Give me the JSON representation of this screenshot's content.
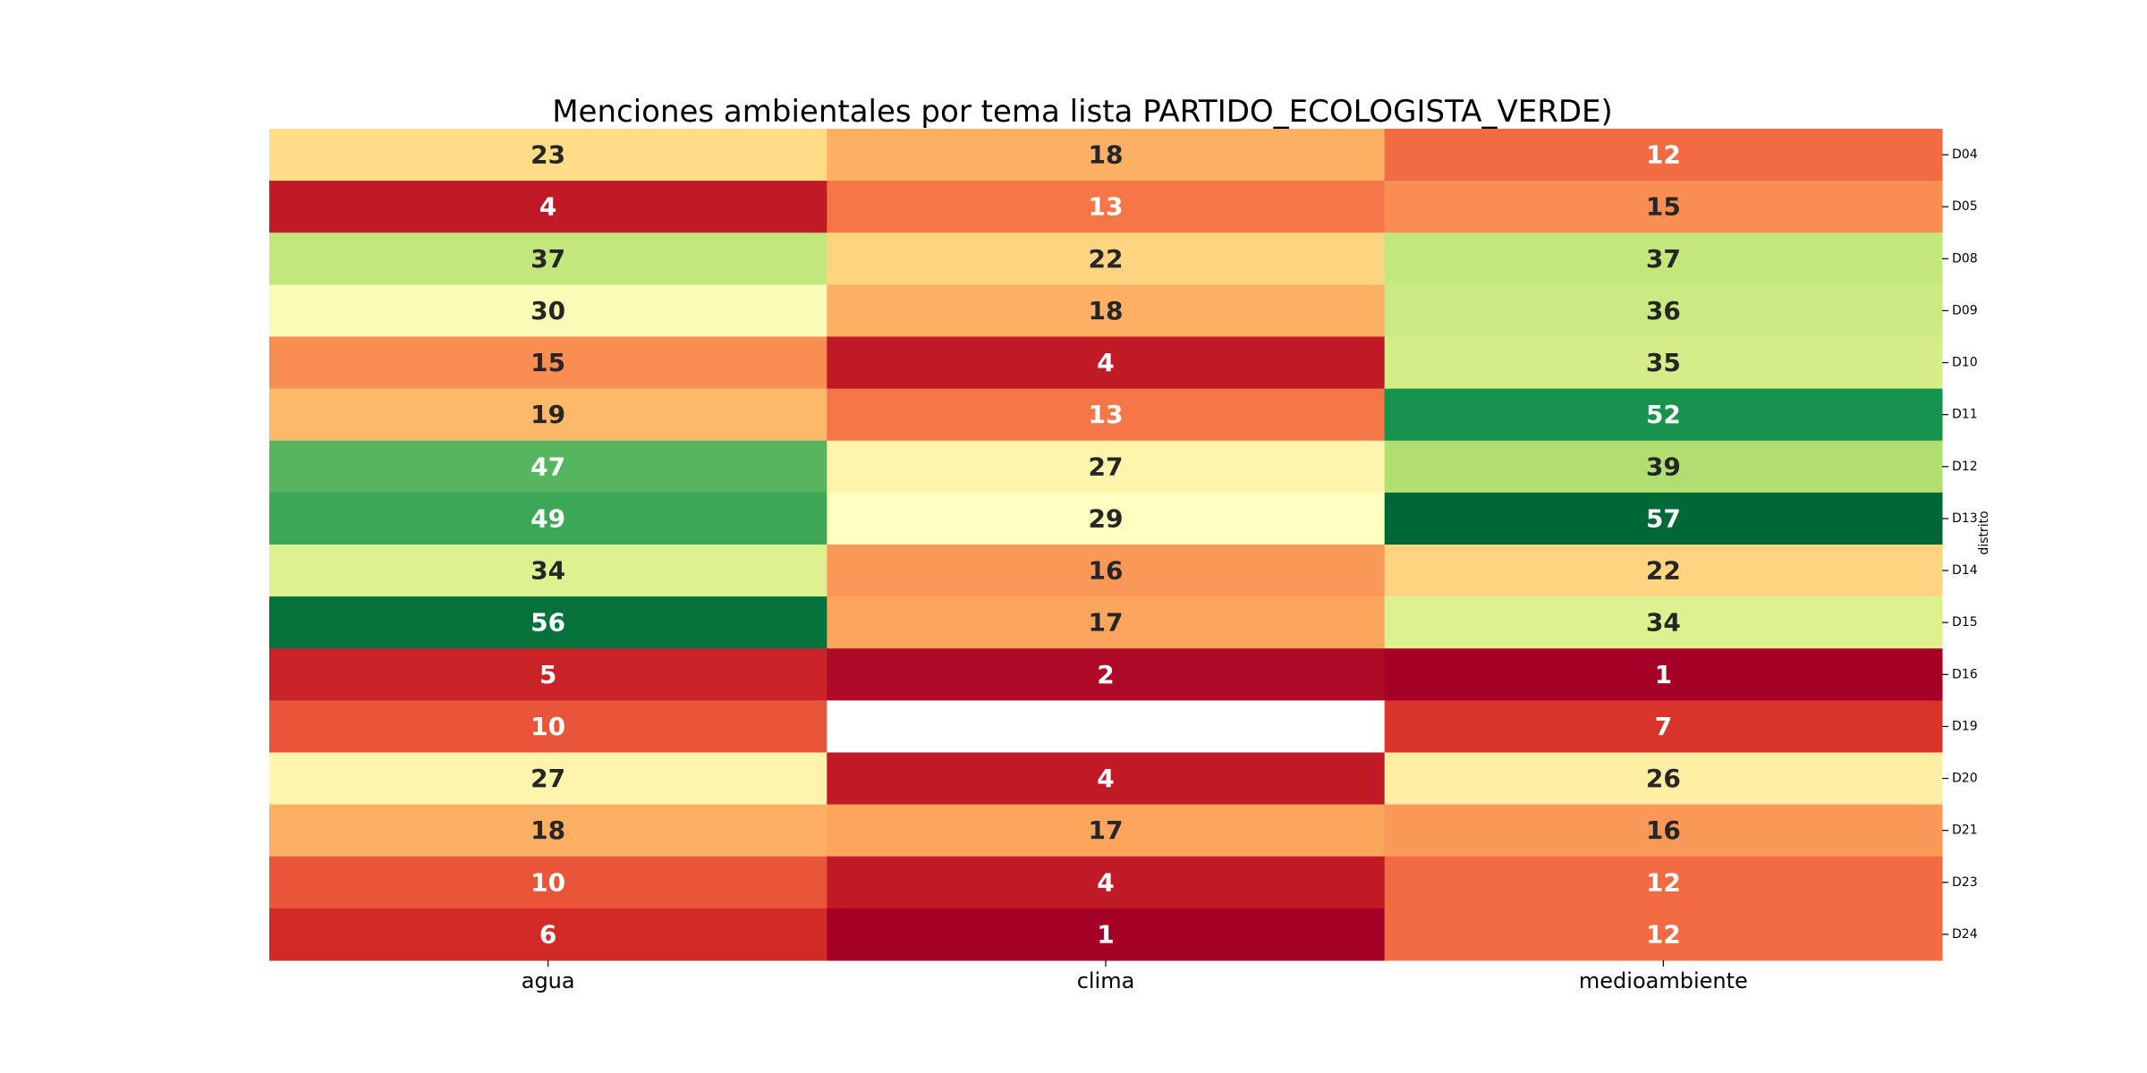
{
  "chart_data": {
    "type": "heatmap",
    "title": "Menciones ambientales por tema lista PARTIDO_ECOLOGISTA_VERDE)",
    "xlabel": "",
    "ylabel": "distrito",
    "columns": [
      "agua",
      "clima",
      "medioambiente"
    ],
    "rows": [
      "D04",
      "D05",
      "D08",
      "D09",
      "D10",
      "D11",
      "D12",
      "D13",
      "D14",
      "D15",
      "D16",
      "D19",
      "D20",
      "D21",
      "D23",
      "D24"
    ],
    "values": [
      [
        23,
        18,
        12
      ],
      [
        4,
        13,
        15
      ],
      [
        37,
        22,
        37
      ],
      [
        30,
        18,
        36
      ],
      [
        15,
        4,
        35
      ],
      [
        19,
        13,
        52
      ],
      [
        47,
        27,
        39
      ],
      [
        49,
        29,
        57
      ],
      [
        34,
        16,
        22
      ],
      [
        56,
        17,
        34
      ],
      [
        5,
        2,
        1
      ],
      [
        10,
        null,
        7
      ],
      [
        27,
        4,
        26
      ],
      [
        18,
        17,
        16
      ],
      [
        10,
        4,
        12
      ],
      [
        6,
        1,
        12
      ]
    ],
    "colormap": "RdYlGn",
    "vmin": 1,
    "vmax": 57,
    "missing_color": "#ffffff",
    "annotations": true,
    "ytick_position": "right",
    "ylabel_position": "right"
  }
}
